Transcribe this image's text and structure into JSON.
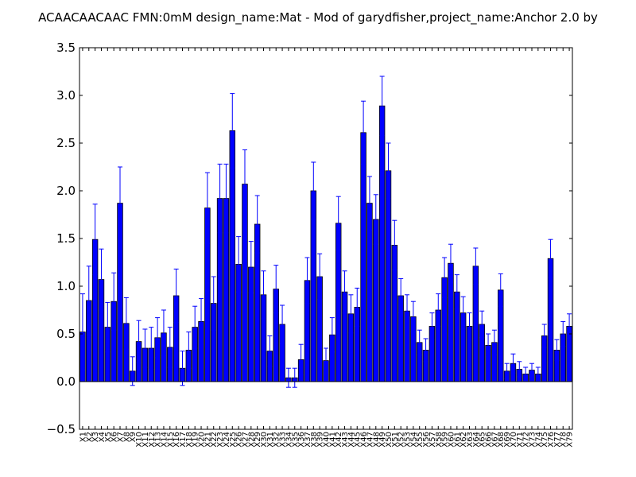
{
  "chart_data": {
    "type": "bar",
    "title": "ACAACAACAAC  FMN:0mM  design_name:Mat - Mod of garydfisher,project_name:Anchor 2.0 by",
    "xlabel": "",
    "ylabel": "",
    "ylim": [
      -0.5,
      3.5
    ],
    "yticks": [
      "−0.5",
      "0.0",
      "0.5",
      "1.0",
      "1.5",
      "2.0",
      "2.5",
      "3.0",
      "3.5"
    ],
    "ytick_values": [
      -0.5,
      0.0,
      0.5,
      1.0,
      1.5,
      2.0,
      2.5,
      3.0,
      3.5
    ],
    "grid": false,
    "colors": {
      "bar": "#0000ff",
      "error": "#0000ff",
      "edge": "#000000"
    },
    "categories": [
      "X1",
      "X2",
      "X3",
      "X4",
      "X5",
      "X6",
      "X7",
      "X8",
      "X9",
      "X10",
      "X11",
      "X12",
      "X13",
      "X14",
      "X15",
      "X16",
      "X17",
      "X18",
      "X19",
      "X20",
      "X21",
      "X22",
      "X23",
      "X24",
      "X25",
      "X26",
      "X27",
      "X28",
      "X29",
      "X30",
      "X31",
      "X32",
      "X33",
      "X34",
      "X35",
      "X36",
      "X37",
      "X38",
      "X39",
      "X40",
      "X41",
      "X42",
      "X43",
      "X44",
      "X45",
      "X46",
      "X47",
      "X48",
      "X49",
      "X50",
      "X51",
      "X52",
      "X53",
      "X54",
      "X55",
      "X56",
      "X57",
      "X58",
      "X59",
      "X60",
      "X61",
      "X62",
      "X63",
      "X64",
      "X65",
      "X66",
      "X67",
      "X68",
      "X69",
      "X70",
      "X71",
      "X72",
      "X73",
      "X74",
      "X75",
      "X76",
      "X77",
      "X78",
      "X79"
    ],
    "values": [
      0.52,
      0.85,
      1.49,
      1.07,
      0.57,
      0.84,
      1.87,
      0.61,
      0.11,
      0.42,
      0.35,
      0.35,
      0.46,
      0.51,
      0.36,
      0.9,
      0.14,
      0.33,
      0.57,
      0.63,
      1.82,
      0.82,
      1.92,
      1.92,
      2.63,
      1.23,
      2.07,
      1.2,
      1.65,
      0.91,
      0.32,
      0.97,
      0.6,
      0.04,
      0.04,
      0.23,
      1.06,
      2.0,
      1.1,
      0.22,
      0.49,
      1.66,
      0.94,
      0.71,
      0.78,
      2.61,
      1.87,
      1.7,
      2.89,
      2.21,
      1.43,
      0.9,
      0.74,
      0.68,
      0.41,
      0.33,
      0.58,
      0.75,
      1.09,
      1.24,
      0.94,
      0.72,
      0.58,
      1.21,
      0.6,
      0.38,
      0.41,
      0.96,
      0.11,
      0.19,
      0.13,
      0.08,
      0.12,
      0.08,
      0.48,
      1.29,
      0.33,
      0.5,
      0.58
    ],
    "errors": [
      0.4,
      0.36,
      0.37,
      0.32,
      0.26,
      0.3,
      0.38,
      0.27,
      0.15,
      0.22,
      0.2,
      0.22,
      0.21,
      0.24,
      0.21,
      0.28,
      0.18,
      0.19,
      0.22,
      0.24,
      0.37,
      0.28,
      0.36,
      0.36,
      0.39,
      0.29,
      0.36,
      0.27,
      0.3,
      0.25,
      0.16,
      0.25,
      0.2,
      0.1,
      0.1,
      0.16,
      0.24,
      0.3,
      0.24,
      0.13,
      0.18,
      0.28,
      0.22,
      0.2,
      0.2,
      0.33,
      0.28,
      0.26,
      0.31,
      0.29,
      0.26,
      0.18,
      0.17,
      0.16,
      0.13,
      0.12,
      0.14,
      0.17,
      0.21,
      0.2,
      0.18,
      0.17,
      0.14,
      0.19,
      0.14,
      0.12,
      0.13,
      0.17,
      0.08,
      0.1,
      0.08,
      0.07,
      0.07,
      0.07,
      0.12,
      0.2,
      0.11,
      0.13,
      0.13
    ]
  }
}
